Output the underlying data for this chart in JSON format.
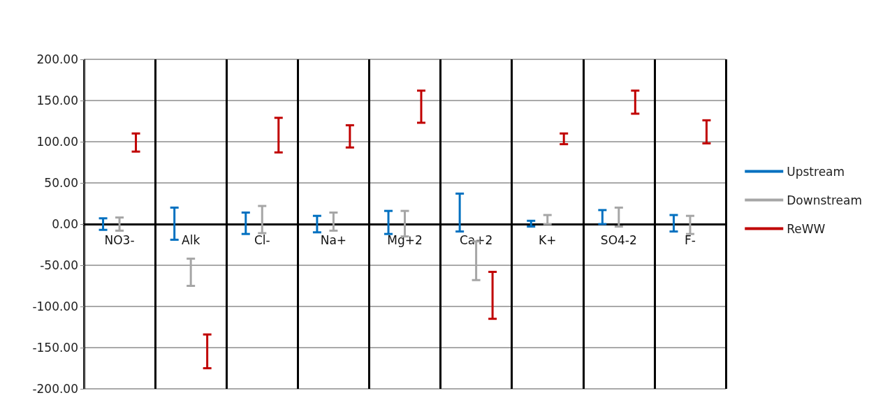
{
  "chart_data": {
    "type": "bar",
    "categories": [
      "NO3-",
      "Alk",
      "Cl-",
      "Na+",
      "Mg+2",
      "Ca+2",
      "K+",
      "SO4-2",
      "F-"
    ],
    "series": [
      {
        "name": "Upstream",
        "color": "#0070c0",
        "base": [
          -7,
          -19,
          -12,
          -10,
          -12,
          -9,
          -3,
          0,
          -9
        ],
        "values": [
          14,
          39,
          26,
          20,
          28,
          46,
          7,
          17,
          20
        ]
      },
      {
        "name": "Downstream",
        "color": "#a6a6a6",
        "base": [
          -8,
          -75,
          -11,
          -8,
          -15,
          -68,
          0,
          -3,
          -12
        ],
        "values": [
          16,
          33,
          33,
          22,
          31,
          47,
          11,
          23,
          22
        ]
      },
      {
        "name": "ReWW",
        "color": "#c00000",
        "base": [
          88,
          -175,
          87,
          93,
          123,
          -115,
          97,
          134,
          98
        ],
        "values": [
          22,
          41,
          42,
          27,
          39,
          57,
          13,
          28,
          28
        ]
      }
    ],
    "ylim": [
      -200,
      200
    ],
    "yticks": [
      {
        "value": -200,
        "label": "-200.00"
      },
      {
        "value": -150,
        "label": "-150.00"
      },
      {
        "value": -100,
        "label": "-100.00"
      },
      {
        "value": -50,
        "label": "-50.00"
      },
      {
        "value": 0,
        "label": "0.00"
      },
      {
        "value": 50,
        "label": "50.00"
      },
      {
        "value": 100,
        "label": "100.00"
      },
      {
        "value": 150,
        "label": "150.00"
      },
      {
        "value": 200,
        "label": "200.00"
      }
    ],
    "grid": true,
    "legend": "right"
  }
}
